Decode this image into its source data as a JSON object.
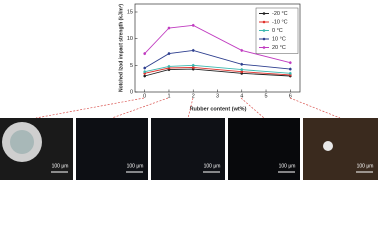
{
  "chart_data": {
    "type": "line",
    "x_label": "Rubber content (wt%)",
    "y_label": "Notched Izod impact strength (kJ/m²)",
    "x": [
      0,
      1,
      2,
      4,
      6
    ],
    "xlim": [
      -0.4,
      6.4
    ],
    "xticks": [
      0,
      1,
      2,
      3,
      4,
      5,
      6
    ],
    "ylim": [
      0,
      16.5
    ],
    "yticks": [
      0,
      5,
      10,
      15
    ],
    "legend": "top-right",
    "series": [
      {
        "name": "-20 °C",
        "color": "#222222",
        "values": [
          3.0,
          4.2,
          4.3,
          3.5,
          3.0
        ]
      },
      {
        "name": "-10 °C",
        "color": "#e0302a",
        "values": [
          3.5,
          4.5,
          4.6,
          3.8,
          3.2
        ]
      },
      {
        "name": "0 °C",
        "color": "#3cb8b0",
        "values": [
          3.8,
          4.8,
          5.0,
          4.2,
          3.5
        ]
      },
      {
        "name": "10 °C",
        "color": "#2e3f8f",
        "values": [
          4.5,
          7.2,
          7.8,
          5.2,
          4.3
        ]
      },
      {
        "name": "20 °C",
        "color": "#c03cc0",
        "values": [
          7.2,
          12.0,
          12.5,
          7.8,
          5.5
        ]
      }
    ],
    "annotations": [
      "100 μm",
      "100 μm",
      "100 μm",
      "100 μm",
      "100 μm"
    ]
  }
}
